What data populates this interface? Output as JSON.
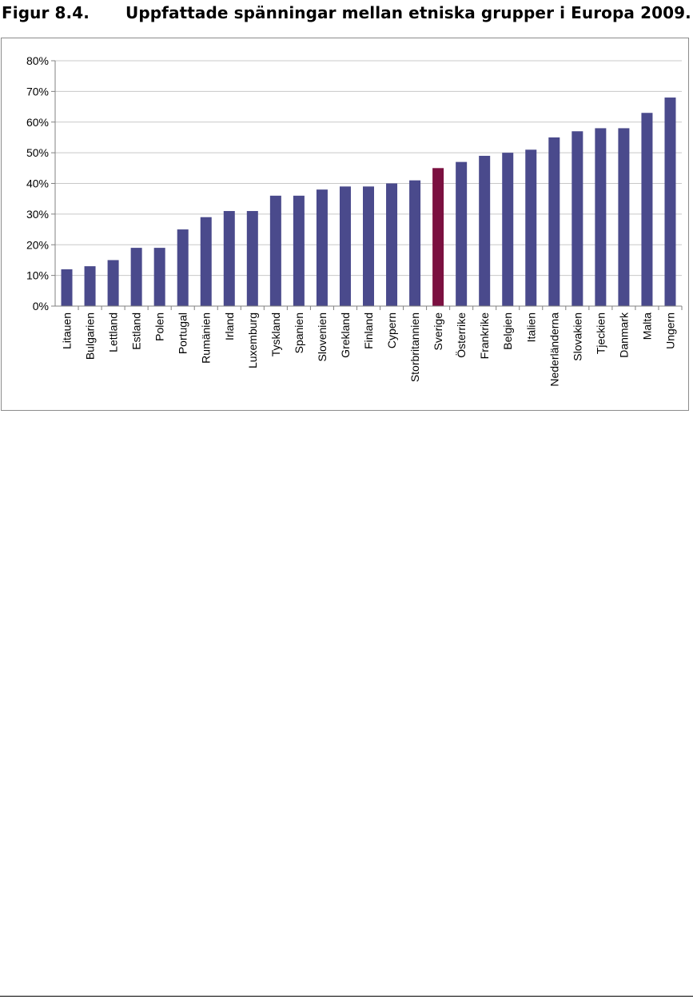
{
  "caption": {
    "number": "Figur 8.4.",
    "title": "Uppfattade spänningar mellan etniska grupper i Europa 2009."
  },
  "colors": {
    "bar": "#4a4a8c",
    "bar_highlight": "#7b1040",
    "grid": "#c8c8c8",
    "axis": "#808080"
  },
  "chart_data": {
    "type": "bar",
    "title": "",
    "xlabel": "",
    "ylabel": "",
    "ylim": [
      0,
      80
    ],
    "yticks": [
      0,
      10,
      20,
      30,
      40,
      50,
      60,
      70,
      80
    ],
    "ytick_labels": [
      "0%",
      "10%",
      "20%",
      "30%",
      "40%",
      "50%",
      "60%",
      "70%",
      "80%"
    ],
    "grid": true,
    "categories": [
      "Litauen",
      "Bulgarien",
      "Lettland",
      "Estland",
      "Polen",
      "Portugal",
      "Rumänien",
      "Irland",
      "Luxemburg",
      "Tyskland",
      "Spanien",
      "Slovenien",
      "Grekland",
      "Finland",
      "Cypern",
      "Storbritannien",
      "Sverige",
      "Österrike",
      "Frankrike",
      "Belgien",
      "Italien",
      "Nederländerna",
      "Slovakien",
      "Tjeckien",
      "Danmark",
      "Malta",
      "Ungern"
    ],
    "values": [
      12,
      13,
      15,
      19,
      19,
      25,
      29,
      31,
      31,
      36,
      36,
      38,
      39,
      39,
      40,
      41,
      45,
      47,
      49,
      50,
      51,
      55,
      57,
      58,
      58,
      63,
      68
    ],
    "highlight": [
      "Sverige"
    ]
  }
}
